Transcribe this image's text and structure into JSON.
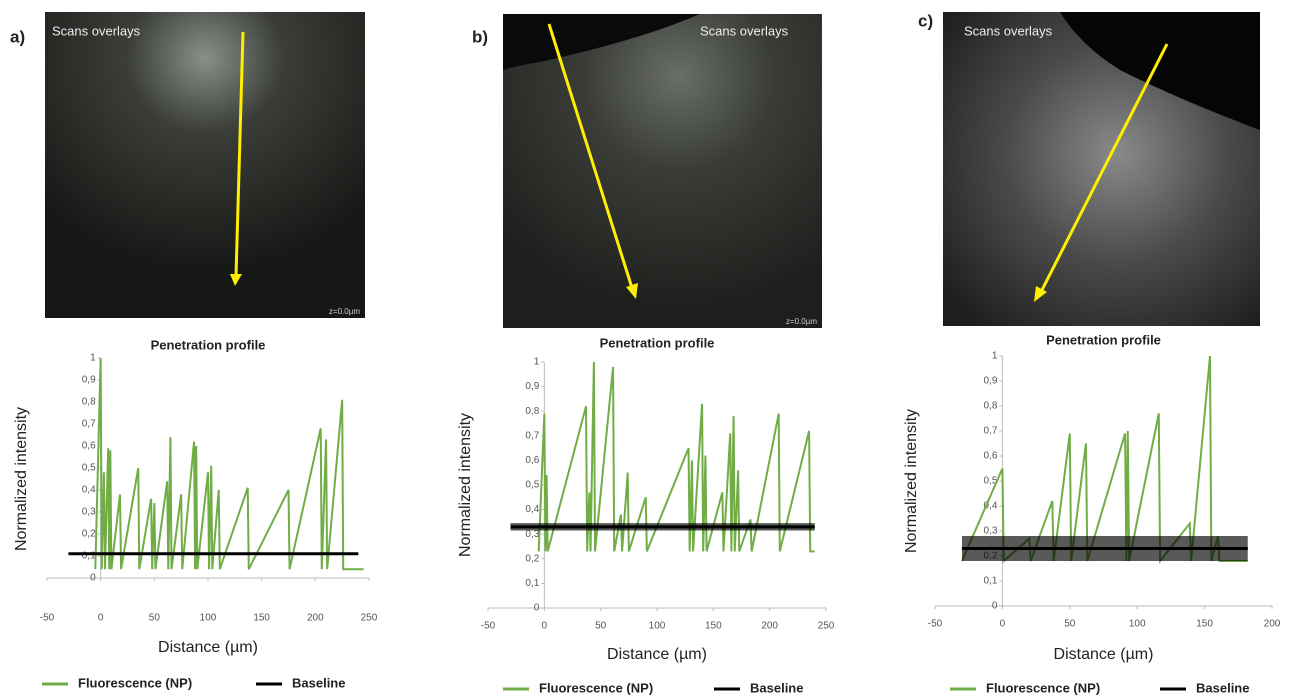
{
  "chart_data": [
    {
      "type": "line",
      "panel_label": "a)",
      "image_caption": "Scans overlays",
      "image_note": "z=0.0µm",
      "title": "Penetration profile",
      "x_label": "Distance (µm)",
      "y_label": "Normalized intensity",
      "xlim": [
        -50,
        250
      ],
      "xticks": [
        -50,
        0,
        50,
        100,
        150,
        200,
        250
      ],
      "ylim": [
        -0.1,
        1
      ],
      "yticks": [
        0,
        {
          "value": 0.1,
          "label": "0,1"
        },
        {
          "value": 0.2,
          "label": "0,2"
        },
        {
          "value": 0.3,
          "label": "0,3"
        },
        {
          "value": 0.4,
          "label": "0,4"
        },
        {
          "value": 0.5,
          "label": "0,5"
        },
        {
          "value": 0.6,
          "label": "0,6"
        },
        {
          "value": 0.7,
          "label": "0,7"
        },
        {
          "value": 0.8,
          "label": "0,8"
        },
        {
          "value": 0.9,
          "label": "0,9"
        },
        1
      ],
      "series": [
        {
          "name": "Fluorescence (NP)",
          "color": "#70ad47",
          "x": [
            -5,
            0,
            1,
            3,
            4,
            7,
            8,
            9,
            10,
            18,
            19,
            35,
            36,
            47,
            48,
            50,
            51,
            62,
            63,
            65,
            66,
            75,
            76,
            87,
            88,
            89,
            90,
            100,
            101,
            103,
            104,
            110,
            111,
            137,
            138,
            175,
            176,
            205,
            206,
            210,
            211,
            225,
            226,
            245
          ],
          "values": [
            0.04,
            1,
            0.04,
            0.48,
            0.04,
            0.59,
            0.04,
            0.58,
            0.04,
            0.38,
            0.04,
            0.5,
            0.04,
            0.36,
            0.04,
            0.34,
            0.04,
            0.44,
            0.04,
            0.64,
            0.04,
            0.38,
            0.04,
            0.62,
            0.04,
            0.6,
            0.04,
            0.48,
            0.04,
            0.51,
            0.04,
            0.4,
            0.04,
            0.41,
            0.04,
            0.4,
            0.04,
            0.68,
            0.04,
            0.63,
            0.04,
            0.81,
            0.04,
            0.04
          ]
        },
        {
          "name": "Baseline",
          "color": "#000000",
          "x": [
            -30,
            240
          ],
          "values": [
            0.11,
            0.11
          ],
          "errors": [
            0.005,
            0.005
          ]
        }
      ]
    },
    {
      "type": "line",
      "panel_label": "b)",
      "image_caption": "Scans overlays",
      "image_note": "z=0.0µm",
      "title": "Penetration profile",
      "x_label": "Distance (µm)",
      "y_label": "Normalized intensity",
      "xlim": [
        -50,
        250
      ],
      "xticks": [
        -50,
        0,
        50,
        100,
        150,
        200,
        250
      ],
      "ylim": [
        0,
        1
      ],
      "yticks": [
        0,
        {
          "value": 0.1,
          "label": "0,1"
        },
        {
          "value": 0.2,
          "label": "0,2"
        },
        {
          "value": 0.3,
          "label": "0,3"
        },
        {
          "value": 0.4,
          "label": "0,4"
        },
        {
          "value": 0.5,
          "label": "0,5"
        },
        {
          "value": 0.6,
          "label": "0,6"
        },
        {
          "value": 0.7,
          "label": "0,7"
        },
        {
          "value": 0.8,
          "label": "0,8"
        },
        {
          "value": 0.9,
          "label": "0,9"
        },
        1
      ],
      "series": [
        {
          "name": "Fluorescence (NP)",
          "color": "#70ad47",
          "x": [
            -5,
            0,
            1,
            2,
            3,
            37,
            38,
            40,
            41,
            44,
            45,
            61,
            62,
            68,
            69,
            74,
            75,
            90,
            91,
            128,
            129,
            131,
            132,
            140,
            141,
            143,
            144,
            158,
            159,
            165,
            166,
            168,
            169,
            172,
            173,
            183,
            184,
            208,
            209,
            235,
            236,
            240
          ],
          "values": [
            0.23,
            0.79,
            0.23,
            0.54,
            0.23,
            0.82,
            0.23,
            0.47,
            0.23,
            1,
            0.23,
            0.98,
            0.23,
            0.38,
            0.23,
            0.55,
            0.23,
            0.45,
            0.23,
            0.65,
            0.23,
            0.6,
            0.23,
            0.83,
            0.23,
            0.62,
            0.23,
            0.47,
            0.23,
            0.71,
            0.23,
            0.78,
            0.23,
            0.56,
            0.23,
            0.36,
            0.23,
            0.79,
            0.23,
            0.72,
            0.23,
            0.23
          ]
        },
        {
          "name": "Baseline",
          "color": "#000000",
          "x": [
            -30,
            240
          ],
          "values": [
            0.33,
            0.33
          ],
          "errors": [
            0.015,
            0.015
          ]
        }
      ]
    },
    {
      "type": "line",
      "panel_label": "c)",
      "image_caption": "Scans overlays",
      "title": "Penetration profile",
      "x_label": "Distance (µm)",
      "y_label": "Normalized intensity",
      "xlim": [
        -50,
        200
      ],
      "xticks": [
        -50,
        0,
        50,
        100,
        150,
        200
      ],
      "ylim": [
        0,
        1
      ],
      "yticks": [
        0,
        {
          "value": 0.1,
          "label": "0,1"
        },
        {
          "value": 0.2,
          "label": "0,2"
        },
        {
          "value": 0.3,
          "label": "0,3"
        },
        {
          "value": 0.4,
          "label": "0,4"
        },
        {
          "value": 0.5,
          "label": "0,5"
        },
        {
          "value": 0.6,
          "label": "0,6"
        },
        {
          "value": 0.7,
          "label": "0,7"
        },
        {
          "value": 0.8,
          "label": "0,8"
        },
        {
          "value": 0.9,
          "label": "0,9"
        },
        1
      ],
      "series": [
        {
          "name": "Fluorescence (NP)",
          "color": "#70ad47",
          "x": [
            -30,
            0,
            1,
            20,
            21,
            37,
            38,
            50,
            51,
            62,
            63,
            91,
            92,
            93,
            94,
            116,
            117,
            139,
            140,
            154,
            155,
            160,
            161,
            182
          ],
          "values": [
            0.18,
            0.55,
            0.18,
            0.27,
            0.18,
            0.42,
            0.18,
            0.69,
            0.18,
            0.65,
            0.18,
            0.69,
            0.18,
            0.7,
            0.18,
            0.77,
            0.18,
            0.33,
            0.18,
            1,
            0.18,
            0.28,
            0.18,
            0.18
          ]
        },
        {
          "name": "Baseline",
          "color": "#000000",
          "x": [
            -30,
            182
          ],
          "values": [
            0.23,
            0.23
          ],
          "errors": [
            0.05,
            0.05
          ]
        }
      ]
    }
  ]
}
